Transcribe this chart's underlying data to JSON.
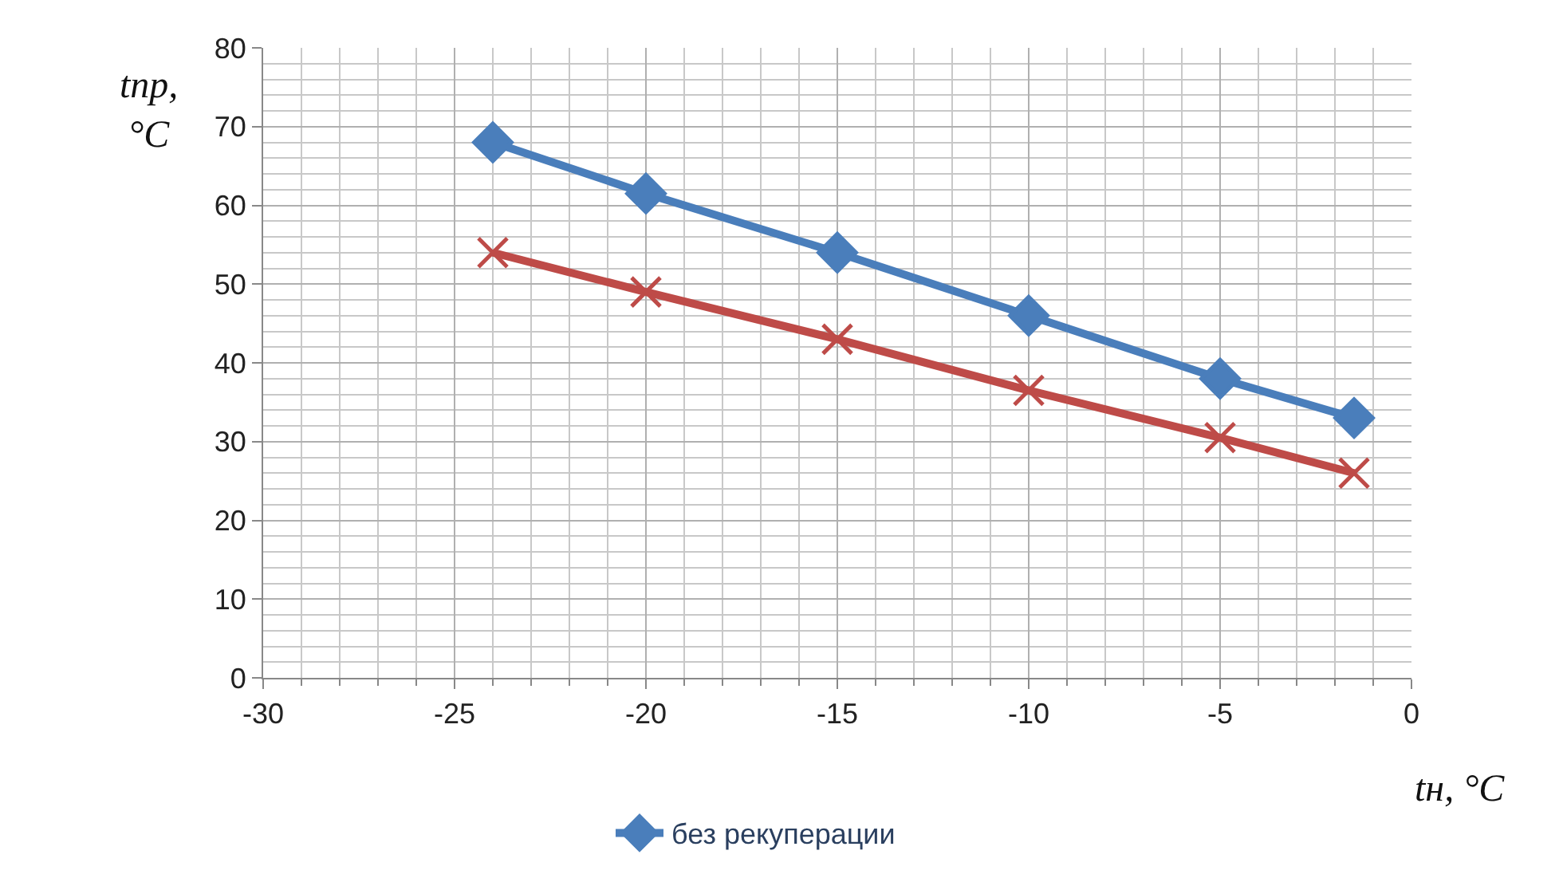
{
  "chart_data": {
    "type": "line",
    "xlabel": "tн, °C",
    "ylabel": "tпр, °C",
    "x": [
      -24,
      -20,
      -15,
      -10,
      -5,
      -1.5
    ],
    "series": [
      {
        "name": "без рекуперации",
        "color": "#4a7ebb",
        "values": [
          68,
          61.5,
          54,
          46,
          38,
          33
        ],
        "marker": "diamond"
      },
      {
        "color": "#be4b48",
        "values": [
          54,
          49,
          43,
          36.5,
          30.5,
          26
        ],
        "marker": "cross"
      }
    ],
    "xlim": [
      -30,
      0
    ],
    "xticks": [
      -30,
      -25,
      -20,
      -15,
      -10,
      -5,
      0
    ],
    "ylim": [
      0,
      80
    ],
    "yticks": [
      0,
      10,
      20,
      30,
      40,
      50,
      60,
      70,
      80
    ],
    "grid": true,
    "legend": "bottom",
    "line_style": "solid"
  }
}
